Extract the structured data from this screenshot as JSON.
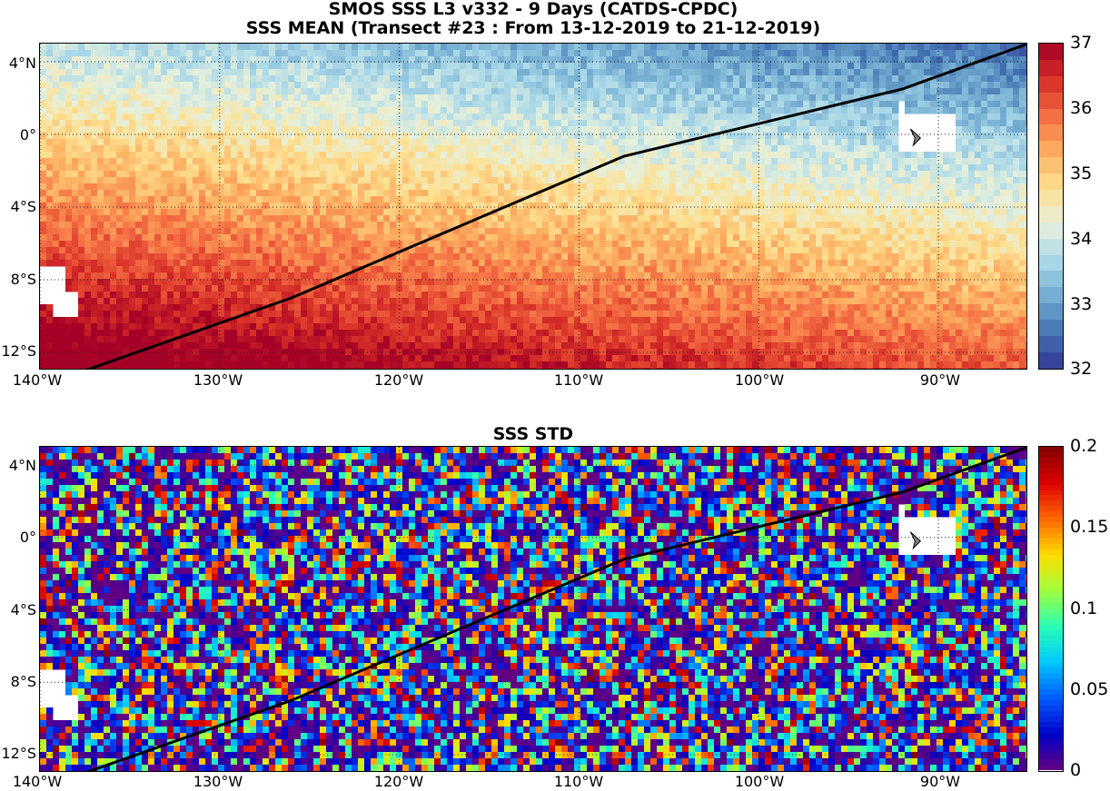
{
  "header": {
    "line1": "SMOS SSS L3 v332 - 9 Days (CATDS-CPDC)",
    "line2": "SSS MEAN (Transect #23 : From 13-12-2019 to 21-12-2019)"
  },
  "panels": [
    {
      "title": "SSS MEAN",
      "colorbar": {
        "min": 32,
        "max": 37,
        "ticks": [
          "37",
          "36",
          "35",
          "34",
          "33",
          "32"
        ],
        "palette": "RdYlBu reversed"
      },
      "lat_ticks": [
        "4°N",
        "0°",
        "4°S",
        "8°S",
        "12°S"
      ],
      "lon_ticks": [
        "140°W",
        "130°W",
        "120°W",
        "110°W",
        "100°W",
        "90°W"
      ]
    },
    {
      "title": "SSS STD",
      "colorbar": {
        "min": 0,
        "max": 0.2,
        "ticks": [
          "0.2",
          "0.15",
          "0.1",
          "0.05",
          "0"
        ],
        "palette": "jet"
      },
      "lat_ticks": [
        "4°N",
        "0°",
        "4°S",
        "8°S",
        "12°S"
      ],
      "lon_ticks": [
        "140°W",
        "130°W",
        "120°W",
        "110°W",
        "100°W",
        "90°W"
      ]
    }
  ],
  "map_extent": {
    "lon_min": -140,
    "lon_max": -85,
    "lat_min": -13,
    "lat_max": 5
  },
  "transect": [
    [
      -137.5,
      -13
    ],
    [
      -126,
      -9
    ],
    [
      -107.5,
      -1.2
    ],
    [
      -92,
      2.5
    ],
    [
      -85,
      5
    ]
  ],
  "islands": [
    "galapagos",
    "marquesas"
  ],
  "colors": {
    "transect": "#000000",
    "land": "#ffffff",
    "marker": "#808080"
  }
}
